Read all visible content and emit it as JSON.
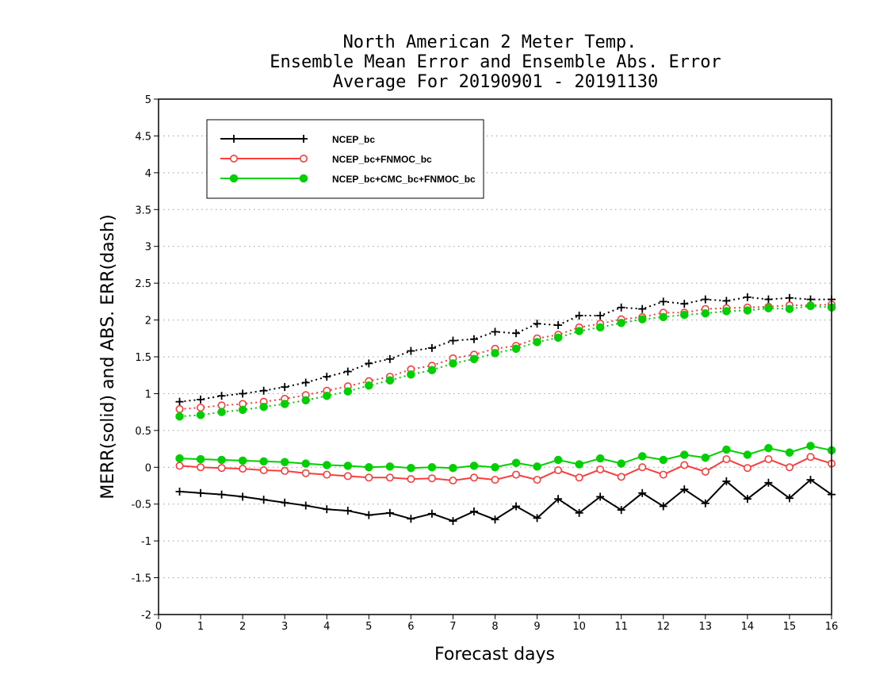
{
  "chart_data": {
    "type": "line",
    "title": [
      "North American 2 Meter Temp.",
      "Ensemble Mean Error and Ensemble Abs. Error",
      "Average For 20190901 - 20191130"
    ],
    "xlabel": "Forecast days",
    "ylabel": "MERR(solid) and ABS. ERR(dash)",
    "xlim": [
      0,
      16
    ],
    "ylim": [
      -2,
      5
    ],
    "x_ticks": [
      "0",
      "1",
      "2",
      "3",
      "4",
      "5",
      "6",
      "7",
      "8",
      "9",
      "10",
      "11",
      "12",
      "13",
      "14",
      "15",
      "16"
    ],
    "y_ticks": [
      "-2",
      "-1.5",
      "-1",
      "-0.5",
      "0",
      "0.5",
      "1",
      "1.5",
      "2",
      "2.5",
      "3",
      "3.5",
      "4",
      "4.5",
      "5"
    ],
    "grid": true,
    "legend_position": "top-left",
    "x": [
      0.5,
      1,
      1.5,
      2,
      2.5,
      3,
      3.5,
      4,
      4.5,
      5,
      5.5,
      6,
      6.5,
      7,
      7.5,
      8,
      8.5,
      9,
      9.5,
      10,
      10.5,
      11,
      11.5,
      12,
      12.5,
      13,
      13.5,
      14,
      14.5,
      15,
      15.5,
      16
    ],
    "series": [
      {
        "name": "NCEP_bc",
        "color": "#000000",
        "marker": "plus",
        "abs_err": [
          0.89,
          0.92,
          0.97,
          1.0,
          1.04,
          1.09,
          1.15,
          1.23,
          1.3,
          1.41,
          1.47,
          1.58,
          1.62,
          1.72,
          1.74,
          1.84,
          1.82,
          1.95,
          1.93,
          2.06,
          2.06,
          2.17,
          2.15,
          2.25,
          2.22,
          2.28,
          2.26,
          2.31,
          2.28,
          2.3,
          2.28,
          2.28
        ],
        "mean_err": [
          -0.33,
          -0.35,
          -0.37,
          -0.4,
          -0.44,
          -0.48,
          -0.52,
          -0.57,
          -0.59,
          -0.65,
          -0.62,
          -0.7,
          -0.63,
          -0.73,
          -0.6,
          -0.71,
          -0.53,
          -0.69,
          -0.43,
          -0.62,
          -0.4,
          -0.58,
          -0.35,
          -0.53,
          -0.3,
          -0.49,
          -0.19,
          -0.43,
          -0.21,
          -0.42,
          -0.17,
          -0.37
        ]
      },
      {
        "name": "NCEP_bc+FNMOC_bc",
        "color": "#ff3b3b",
        "marker": "open-circle",
        "abs_err": [
          0.79,
          0.81,
          0.84,
          0.86,
          0.89,
          0.93,
          0.98,
          1.04,
          1.1,
          1.17,
          1.23,
          1.33,
          1.38,
          1.48,
          1.53,
          1.61,
          1.65,
          1.75,
          1.8,
          1.9,
          1.95,
          2.01,
          2.04,
          2.1,
          2.1,
          2.15,
          2.16,
          2.17,
          2.18,
          2.2,
          2.2,
          2.21
        ],
        "mean_err": [
          0.02,
          0.0,
          -0.01,
          -0.02,
          -0.04,
          -0.05,
          -0.08,
          -0.1,
          -0.12,
          -0.14,
          -0.14,
          -0.16,
          -0.15,
          -0.18,
          -0.14,
          -0.17,
          -0.1,
          -0.17,
          -0.04,
          -0.14,
          -0.03,
          -0.13,
          0.0,
          -0.1,
          0.03,
          -0.06,
          0.11,
          -0.01,
          0.11,
          0.0,
          0.14,
          0.05
        ]
      },
      {
        "name": "NCEP_bc+CMC_bc+FNMOC_bc",
        "color": "#00d000",
        "marker": "filled-circle",
        "abs_err": [
          0.69,
          0.71,
          0.75,
          0.78,
          0.82,
          0.86,
          0.91,
          0.97,
          1.03,
          1.11,
          1.18,
          1.26,
          1.32,
          1.41,
          1.47,
          1.55,
          1.61,
          1.7,
          1.76,
          1.85,
          1.9,
          1.96,
          2.01,
          2.04,
          2.07,
          2.09,
          2.12,
          2.13,
          2.16,
          2.15,
          2.19,
          2.17
        ],
        "mean_err": [
          0.12,
          0.11,
          0.1,
          0.09,
          0.08,
          0.07,
          0.05,
          0.03,
          0.02,
          0.0,
          0.01,
          -0.01,
          0.0,
          -0.01,
          0.02,
          0.0,
          0.06,
          0.01,
          0.1,
          0.04,
          0.12,
          0.05,
          0.15,
          0.1,
          0.17,
          0.13,
          0.24,
          0.17,
          0.26,
          0.2,
          0.29,
          0.23
        ]
      }
    ]
  }
}
